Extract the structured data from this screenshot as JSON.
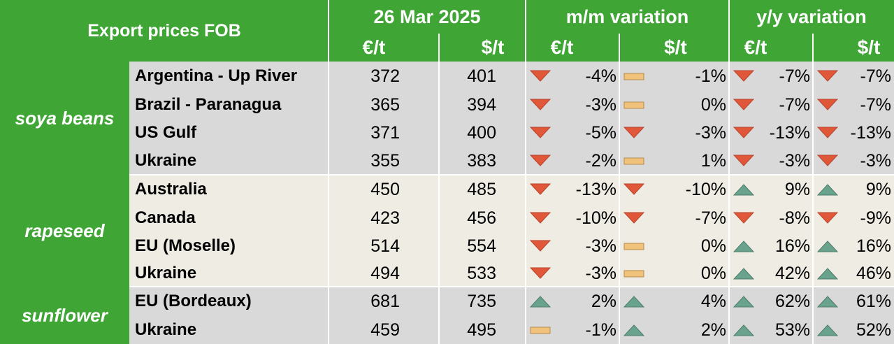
{
  "header": {
    "title": "Export prices FOB",
    "date": "26 Mar 2025",
    "mm": "m/m variation",
    "yy": "y/y variation",
    "eur": "€/t",
    "usd": "$/t"
  },
  "colors": {
    "header_green": "#3fa535",
    "down_red": "#e0573a",
    "up_teal": "#6aa38d",
    "flat_tan": "#f1c27c",
    "band_grey": "#d9d9d9",
    "band_cream": "#efece3"
  },
  "groups": [
    {
      "name": "soya beans",
      "rows": [
        {
          "origin": "Argentina - Up River",
          "eur": "372",
          "usd": "401",
          "mm_eur": {
            "value": "-4%",
            "trend": "down"
          },
          "mm_usd": {
            "value": "-1%",
            "trend": "flat"
          },
          "yy_eur": {
            "value": "-7%",
            "trend": "down"
          },
          "yy_usd": {
            "value": "-7%",
            "trend": "down"
          }
        },
        {
          "origin": "Brazil - Paranagua",
          "eur": "365",
          "usd": "394",
          "mm_eur": {
            "value": "-3%",
            "trend": "down"
          },
          "mm_usd": {
            "value": "0%",
            "trend": "flat"
          },
          "yy_eur": {
            "value": "-7%",
            "trend": "down"
          },
          "yy_usd": {
            "value": "-7%",
            "trend": "down"
          }
        },
        {
          "origin": "US Gulf",
          "eur": "371",
          "usd": "400",
          "mm_eur": {
            "value": "-5%",
            "trend": "down"
          },
          "mm_usd": {
            "value": "-3%",
            "trend": "down"
          },
          "yy_eur": {
            "value": "-13%",
            "trend": "down"
          },
          "yy_usd": {
            "value": "-13%",
            "trend": "down"
          }
        },
        {
          "origin": "Ukraine",
          "eur": "355",
          "usd": "383",
          "mm_eur": {
            "value": "-2%",
            "trend": "down"
          },
          "mm_usd": {
            "value": "1%",
            "trend": "flat"
          },
          "yy_eur": {
            "value": "-3%",
            "trend": "down"
          },
          "yy_usd": {
            "value": "-3%",
            "trend": "down"
          }
        }
      ]
    },
    {
      "name": "rapeseed",
      "rows": [
        {
          "origin": "Australia",
          "eur": "450",
          "usd": "485",
          "mm_eur": {
            "value": "-13%",
            "trend": "down"
          },
          "mm_usd": {
            "value": "-10%",
            "trend": "down"
          },
          "yy_eur": {
            "value": "9%",
            "trend": "up"
          },
          "yy_usd": {
            "value": "9%",
            "trend": "up"
          }
        },
        {
          "origin": "Canada",
          "eur": "423",
          "usd": "456",
          "mm_eur": {
            "value": "-10%",
            "trend": "down"
          },
          "mm_usd": {
            "value": "-7%",
            "trend": "down"
          },
          "yy_eur": {
            "value": "-8%",
            "trend": "down"
          },
          "yy_usd": {
            "value": "-9%",
            "trend": "down"
          }
        },
        {
          "origin": "EU (Moselle)",
          "eur": "514",
          "usd": "554",
          "mm_eur": {
            "value": "-3%",
            "trend": "down"
          },
          "mm_usd": {
            "value": "0%",
            "trend": "flat"
          },
          "yy_eur": {
            "value": "16%",
            "trend": "up"
          },
          "yy_usd": {
            "value": "16%",
            "trend": "up"
          }
        },
        {
          "origin": "Ukraine",
          "eur": "494",
          "usd": "533",
          "mm_eur": {
            "value": "-3%",
            "trend": "down"
          },
          "mm_usd": {
            "value": "0%",
            "trend": "flat"
          },
          "yy_eur": {
            "value": "42%",
            "trend": "up"
          },
          "yy_usd": {
            "value": "46%",
            "trend": "up"
          }
        }
      ]
    },
    {
      "name": "sunflower",
      "rows": [
        {
          "origin": "EU (Bordeaux)",
          "eur": "681",
          "usd": "735",
          "mm_eur": {
            "value": "2%",
            "trend": "up"
          },
          "mm_usd": {
            "value": "4%",
            "trend": "up"
          },
          "yy_eur": {
            "value": "62%",
            "trend": "up"
          },
          "yy_usd": {
            "value": "61%",
            "trend": "up"
          }
        },
        {
          "origin": "Ukraine",
          "eur": "459",
          "usd": "495",
          "mm_eur": {
            "value": "-1%",
            "trend": "flat"
          },
          "mm_usd": {
            "value": "2%",
            "trend": "up"
          },
          "yy_eur": {
            "value": "53%",
            "trend": "up"
          },
          "yy_usd": {
            "value": "52%",
            "trend": "up"
          }
        }
      ]
    }
  ]
}
